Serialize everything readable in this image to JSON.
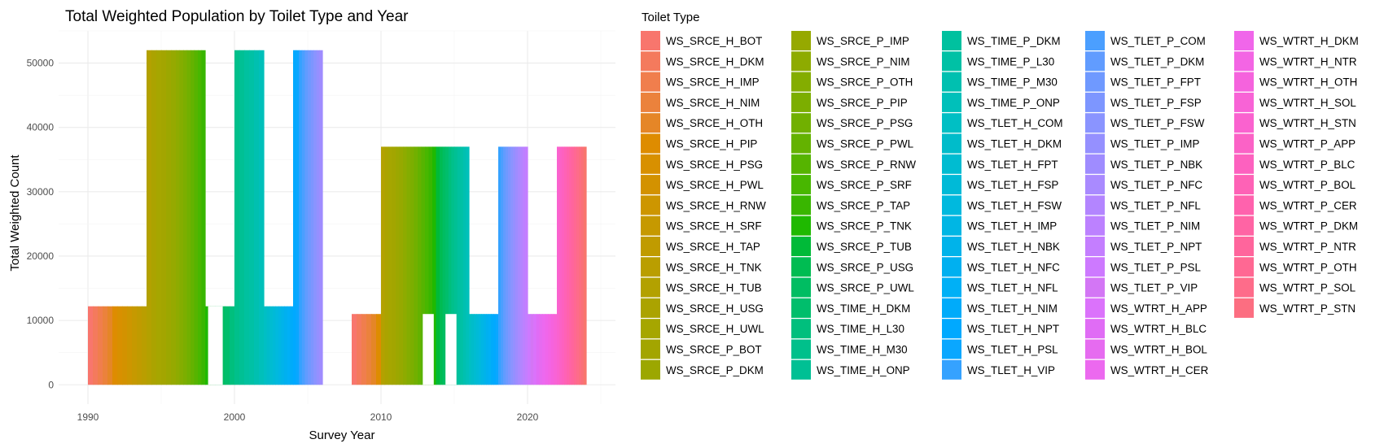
{
  "chart_data": {
    "type": "bar",
    "title": "Total Weighted Population by Toilet Type and Year",
    "xlabel": "Survey Year",
    "ylabel": "Total Weighted Count",
    "xlim": [
      1988,
      2026
    ],
    "ylim": [
      -3000,
      55000
    ],
    "x_ticks": [
      1990,
      2000,
      2010,
      2020
    ],
    "y_ticks": [
      0,
      10000,
      20000,
      30000,
      40000,
      50000
    ],
    "x_tick_labels": [
      "1990",
      "2000",
      "2010",
      "2020"
    ],
    "y_tick_labels": [
      "0",
      "10000",
      "20000",
      "30000",
      "40000",
      "50000"
    ],
    "grid": true,
    "legend_title": "Toilet Type",
    "legend_position": "right",
    "legend_columns": 5,
    "legend_rows": 17,
    "bar_width": 2,
    "categories": [
      "WS_SRCE_H_BOT",
      "WS_SRCE_H_DKM",
      "WS_SRCE_H_IMP",
      "WS_SRCE_H_NIM",
      "WS_SRCE_H_OTH",
      "WS_SRCE_H_PIP",
      "WS_SRCE_H_PSG",
      "WS_SRCE_H_PWL",
      "WS_SRCE_H_RNW",
      "WS_SRCE_H_SRF",
      "WS_SRCE_H_TAP",
      "WS_SRCE_H_TNK",
      "WS_SRCE_H_TUB",
      "WS_SRCE_H_USG",
      "WS_SRCE_H_UWL",
      "WS_SRCE_P_BOT",
      "WS_SRCE_P_DKM",
      "WS_SRCE_P_IMP",
      "WS_SRCE_P_NIM",
      "WS_SRCE_P_OTH",
      "WS_SRCE_P_PIP",
      "WS_SRCE_P_PSG",
      "WS_SRCE_P_PWL",
      "WS_SRCE_P_RNW",
      "WS_SRCE_P_SRF",
      "WS_SRCE_P_TAP",
      "WS_SRCE_P_TNK",
      "WS_SRCE_P_TUB",
      "WS_SRCE_P_USG",
      "WS_SRCE_P_UWL",
      "WS_TIME_H_DKM",
      "WS_TIME_H_L30",
      "WS_TIME_H_M30",
      "WS_TIME_H_ONP",
      "WS_TIME_P_DKM",
      "WS_TIME_P_L30",
      "WS_TIME_P_M30",
      "WS_TIME_P_ONP",
      "WS_TLET_H_COM",
      "WS_TLET_H_DKM",
      "WS_TLET_H_FPT",
      "WS_TLET_H_FSP",
      "WS_TLET_H_FSW",
      "WS_TLET_H_IMP",
      "WS_TLET_H_NBK",
      "WS_TLET_H_NFC",
      "WS_TLET_H_NFL",
      "WS_TLET_H_NIM",
      "WS_TLET_H_NPT",
      "WS_TLET_H_PSL",
      "WS_TLET_H_VIP",
      "WS_TLET_P_COM",
      "WS_TLET_P_DKM",
      "WS_TLET_P_FPT",
      "WS_TLET_P_FSP",
      "WS_TLET_P_FSW",
      "WS_TLET_P_IMP",
      "WS_TLET_P_NBK",
      "WS_TLET_P_NFC",
      "WS_TLET_P_NFL",
      "WS_TLET_P_NIM",
      "WS_TLET_P_NPT",
      "WS_TLET_P_PSL",
      "WS_TLET_P_VIP",
      "WS_WTRT_H_APP",
      "WS_WTRT_H_BLC",
      "WS_WTRT_H_BOL",
      "WS_WTRT_H_CER",
      "WS_WTRT_H_DKM",
      "WS_WTRT_H_NTR",
      "WS_WTRT_H_OTH",
      "WS_WTRT_H_SOL",
      "WS_WTRT_H_STN",
      "WS_WTRT_P_APP",
      "WS_WTRT_P_BLC",
      "WS_WTRT_P_BOL",
      "WS_WTRT_P_CER",
      "WS_WTRT_P_DKM",
      "WS_WTRT_P_NTR",
      "WS_WTRT_P_OTH",
      "WS_WTRT_P_SOL",
      "WS_WTRT_P_STN"
    ],
    "colors": [
      "#F8766D",
      "#F47A5D",
      "#F07E4D",
      "#EB823C",
      "#E58627",
      "#DE8C00",
      "#D89000",
      "#D39200",
      "#CD9600",
      "#C69900",
      "#C09B00",
      "#BA9E00",
      "#B3A100",
      "#ABA300",
      "#A6A600",
      "#A3A500",
      "#9CA700",
      "#96A900",
      "#8EAB00",
      "#84AD00",
      "#7CAE00",
      "#71B000",
      "#64B200",
      "#56B400",
      "#48B700",
      "#39B600",
      "#1FB900",
      "#00BA38",
      "#00BC52",
      "#00BD62",
      "#00BE6C",
      "#00BF7D",
      "#00C08B",
      "#00C094",
      "#00C19F",
      "#00C1A5",
      "#00C0B0",
      "#00C0BA",
      "#00BFC4",
      "#00BCCA",
      "#00BCD1",
      "#00BAD7",
      "#00B9DE",
      "#00B6E4",
      "#00B3EA",
      "#00B0F0",
      "#00B0F6",
      "#00ABFA",
      "#00A9FF",
      "#0AA7FF",
      "#35A2FF",
      "#4B9FFF",
      "#619CFF",
      "#6F99FF",
      "#7D96FF",
      "#8A94FF",
      "#9590FF",
      "#9F8CFF",
      "#A98AFF",
      "#B385FF",
      "#BC81FF",
      "#C47EFF",
      "#CD79FF",
      "#D376F5",
      "#DB72FB",
      "#E06CF5",
      "#E66BF0",
      "#EC69EF",
      "#F066EA",
      "#F365E4",
      "#F563DD",
      "#F863D6",
      "#FA62CF",
      "#FB62C6",
      "#FD61BF",
      "#FE62B6",
      "#FF62AD",
      "#FF64A4",
      "#FF659C",
      "#FF6893",
      "#FE6C8A",
      "#FC6E81",
      "#FA7078",
      "#F8766D"
    ],
    "bars": [
      {
        "x": 1991,
        "y": 12200,
        "c0": 0,
        "c1": 6
      },
      {
        "x": 1993,
        "y": 12200,
        "c0": 6,
        "c1": 12
      },
      {
        "x": 1995,
        "y": 52000,
        "c0": 12,
        "c1": 18
      },
      {
        "x": 1997,
        "y": 52000,
        "c0": 18,
        "c1": 26
      },
      {
        "x": 1999,
        "y": 12200,
        "c0": 26,
        "c1": 32
      },
      {
        "x": 2001,
        "y": 52000,
        "c0": 32,
        "c1": 38
      },
      {
        "x": 2003,
        "y": 12200,
        "c0": 38,
        "c1": 48
      },
      {
        "x": 2005,
        "y": 52000,
        "c0": 48,
        "c1": 58
      },
      {
        "x": 2009,
        "y": 11000,
        "c0": 0,
        "c1": 6
      },
      {
        "x": 2011,
        "y": 37000,
        "c0": 12,
        "c1": 20
      },
      {
        "x": 2013,
        "y": 37000,
        "c0": 20,
        "c1": 28
      },
      {
        "x": 2015,
        "y": 37000,
        "c0": 28,
        "c1": 38
      },
      {
        "x": 2017,
        "y": 11000,
        "c0": 38,
        "c1": 50
      },
      {
        "x": 2019,
        "y": 37000,
        "c0": 50,
        "c1": 62
      },
      {
        "x": 2021,
        "y": 11000,
        "c0": 62,
        "c1": 72
      },
      {
        "x": 2023,
        "y": 37000,
        "c0": 72,
        "c1": 84
      }
    ],
    "gaps": [
      {
        "x0": 2012.85,
        "x1": 2013.6,
        "y": 11000
      },
      {
        "x0": 2014.4,
        "x1": 2015.15,
        "y": 11000
      },
      {
        "x0": 1998.2,
        "x1": 1999.2,
        "y": 12200
      }
    ]
  }
}
